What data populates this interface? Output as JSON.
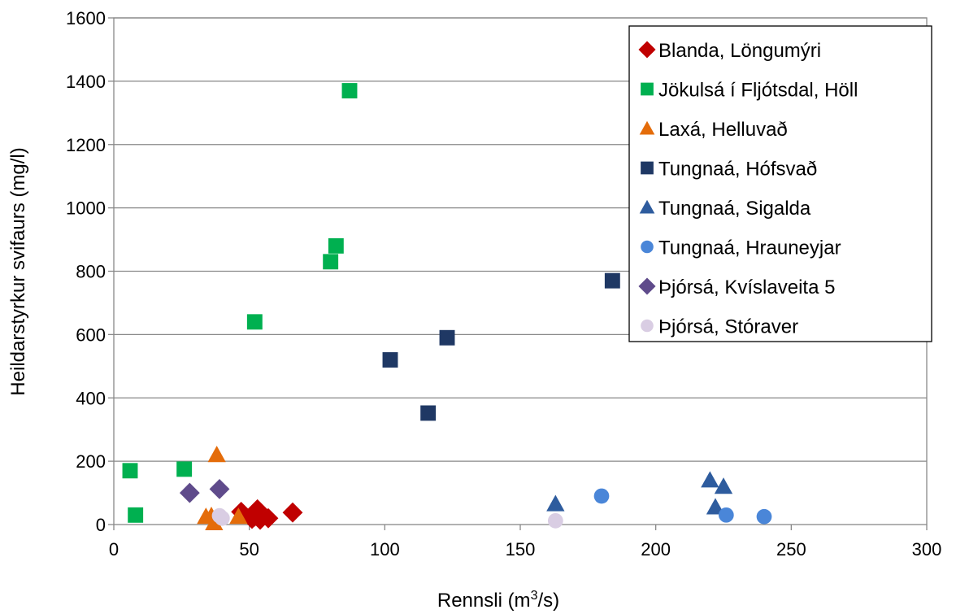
{
  "chart_data": {
    "type": "scatter",
    "title": "",
    "xlabel": "Rennsli (m³/s)",
    "xlabel_parts": {
      "base": "Rennsli (m",
      "sup": "3",
      "tail": "/s)"
    },
    "ylabel": "Heildarstyrkur svifaurs (mg/l)",
    "xlim": [
      0,
      300
    ],
    "ylim": [
      0,
      1600
    ],
    "x_ticks": [
      "0",
      "50",
      "100",
      "150",
      "200",
      "250",
      "300"
    ],
    "y_ticks": [
      "0",
      "200",
      "400",
      "600",
      "800",
      "1000",
      "1200",
      "1400",
      "1600"
    ],
    "grid": "horizontal",
    "legend_position": "top-right",
    "series": [
      {
        "name": "Blanda, Löngumýri",
        "marker": "diamond",
        "color": "#C00000",
        "points": [
          [
            47,
            40
          ],
          [
            51,
            18
          ],
          [
            52,
            25
          ],
          [
            53,
            48
          ],
          [
            54,
            15
          ],
          [
            57,
            20
          ],
          [
            66,
            38
          ]
        ]
      },
      {
        "name": "Jökulsá í Fljótsdal, Höll",
        "marker": "square",
        "color": "#00B050",
        "points": [
          [
            6,
            170
          ],
          [
            8,
            30
          ],
          [
            26,
            175
          ],
          [
            52,
            640
          ],
          [
            80,
            830
          ],
          [
            82,
            880
          ],
          [
            87,
            1370
          ]
        ]
      },
      {
        "name": "Laxá, Helluvað",
        "marker": "triangle",
        "color": "#E46C0A",
        "points": [
          [
            34,
            25
          ],
          [
            36,
            28
          ],
          [
            37,
            5
          ],
          [
            38,
            220
          ],
          [
            46,
            25
          ]
        ]
      },
      {
        "name": "Tungnaá, Hófsvað",
        "marker": "square",
        "color": "#1F3864",
        "points": [
          [
            102,
            520
          ],
          [
            116,
            352
          ],
          [
            123,
            590
          ],
          [
            184,
            770
          ]
        ]
      },
      {
        "name": "Tungnaá, Sigalda",
        "marker": "triangle",
        "color": "#2E5C9E",
        "points": [
          [
            163,
            65
          ],
          [
            220,
            140
          ],
          [
            222,
            55
          ],
          [
            225,
            120
          ]
        ]
      },
      {
        "name": "Tungnaá, Hrauneyjar",
        "marker": "circle",
        "color": "#4A86D8",
        "points": [
          [
            180,
            90
          ],
          [
            226,
            30
          ],
          [
            240,
            25
          ]
        ]
      },
      {
        "name": "Þjórsá, Kvíslaveita 5",
        "marker": "diamond",
        "color": "#5F4B8B",
        "points": [
          [
            28,
            100
          ],
          [
            39,
            112
          ]
        ]
      },
      {
        "name": "Þjórsá, Stóraver",
        "marker": "circle",
        "color": "#D9CDE3",
        "points": [
          [
            39,
            28
          ],
          [
            40,
            20
          ],
          [
            163,
            12
          ]
        ]
      }
    ]
  }
}
